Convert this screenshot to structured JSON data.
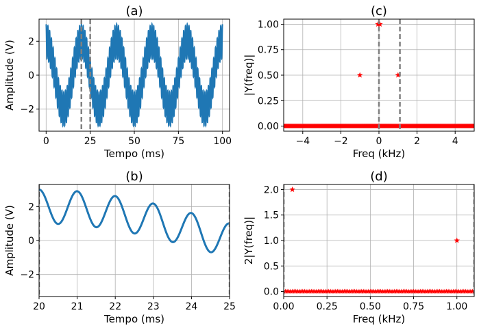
{
  "chart_data": [
    {
      "id": "a",
      "type": "line",
      "title": "(a)",
      "xlabel": "Tempo (ms)",
      "ylabel": "Amplitude (V)",
      "xlim": [
        -4,
        104
      ],
      "ylim": [
        -3.3,
        3.3
      ],
      "xticks": [
        0,
        25,
        50,
        75,
        100
      ],
      "xtick_labels": [
        "0",
        "25",
        "50",
        "75",
        "100"
      ],
      "yticks": [
        -2,
        0,
        2
      ],
      "ytick_labels": [
        "−2",
        "0",
        "2"
      ],
      "grid": true,
      "series_color": "#1f77b4",
      "signal": {
        "x_start": 0,
        "x_end": 100,
        "components": [
          {
            "amplitude": 2,
            "frequency_khz": 0.05
          },
          {
            "amplitude": 1,
            "frequency_khz": 1.0
          }
        ]
      },
      "vlines": [
        20,
        25
      ],
      "vline_color": "#808080"
    },
    {
      "id": "c",
      "type": "scatter",
      "title": "(c)",
      "xlabel": "Freq (kHz)",
      "ylabel": "|Y(freq)|",
      "xlim": [
        -5,
        5
      ],
      "ylim": [
        -0.05,
        1.05
      ],
      "xticks": [
        -4,
        -2,
        0,
        2,
        4
      ],
      "xtick_labels": [
        "−4",
        "−2",
        "0",
        "2",
        "4"
      ],
      "yticks": [
        0,
        0.25,
        0.5,
        0.75,
        1.0
      ],
      "ytick_labels": [
        "0.00",
        "0.25",
        "0.50",
        "0.75",
        "1.00"
      ],
      "grid": true,
      "marker_color": "#ff0000",
      "points": [
        {
          "x": -0.05,
          "y": 1.0
        },
        {
          "x": 0.05,
          "y": 1.0
        },
        {
          "x": -1.0,
          "y": 0.5
        },
        {
          "x": 1.0,
          "y": 0.5
        }
      ],
      "baseline": {
        "y": 0,
        "x_from": -5,
        "x_to": 5
      },
      "vlines": [
        0,
        1.1
      ],
      "vline_color": "#808080"
    },
    {
      "id": "b",
      "type": "line",
      "title": "(b)",
      "xlabel": "Tempo (ms)",
      "ylabel": "Amplitude (V)",
      "xlim": [
        20,
        25
      ],
      "ylim": [
        -3.3,
        3.3
      ],
      "xticks": [
        20,
        21,
        22,
        23,
        24,
        25
      ],
      "xtick_labels": [
        "20",
        "21",
        "22",
        "23",
        "24",
        "25"
      ],
      "yticks": [
        -2,
        0,
        2
      ],
      "ytick_labels": [
        "−2",
        "0",
        "2"
      ],
      "grid": true,
      "series_color": "#1f77b4",
      "signal": {
        "x_start": 20,
        "x_end": 25,
        "components": [
          {
            "amplitude": 2,
            "frequency_khz": 0.05
          },
          {
            "amplitude": 1,
            "frequency_khz": 1.0
          }
        ]
      },
      "vlines": [
        20,
        25
      ],
      "vline_color": "#808080"
    },
    {
      "id": "d",
      "type": "scatter",
      "title": "(d)",
      "xlabel": "Freq (kHz)",
      "ylabel": "2|Y(freq)|",
      "xlim": [
        0,
        1.1
      ],
      "ylim": [
        -0.1,
        2.1
      ],
      "xticks": [
        0,
        0.25,
        0.5,
        0.75,
        1.0
      ],
      "xtick_labels": [
        "0.00",
        "0.25",
        "0.50",
        "0.75",
        "1.00"
      ],
      "yticks": [
        0,
        0.5,
        1.0,
        1.5,
        2.0
      ],
      "ytick_labels": [
        "0.0",
        "0.5",
        "1.0",
        "1.5",
        "2.0"
      ],
      "grid": true,
      "marker_color": "#ff0000",
      "points": [
        {
          "x": 0.05,
          "y": 2.0
        },
        {
          "x": 1.0,
          "y": 1.0
        }
      ],
      "baseline": {
        "y": 0,
        "x_from": 0,
        "x_to": 1.1
      },
      "vlines": [
        0,
        1.1
      ],
      "vline_color": "#808080"
    }
  ]
}
